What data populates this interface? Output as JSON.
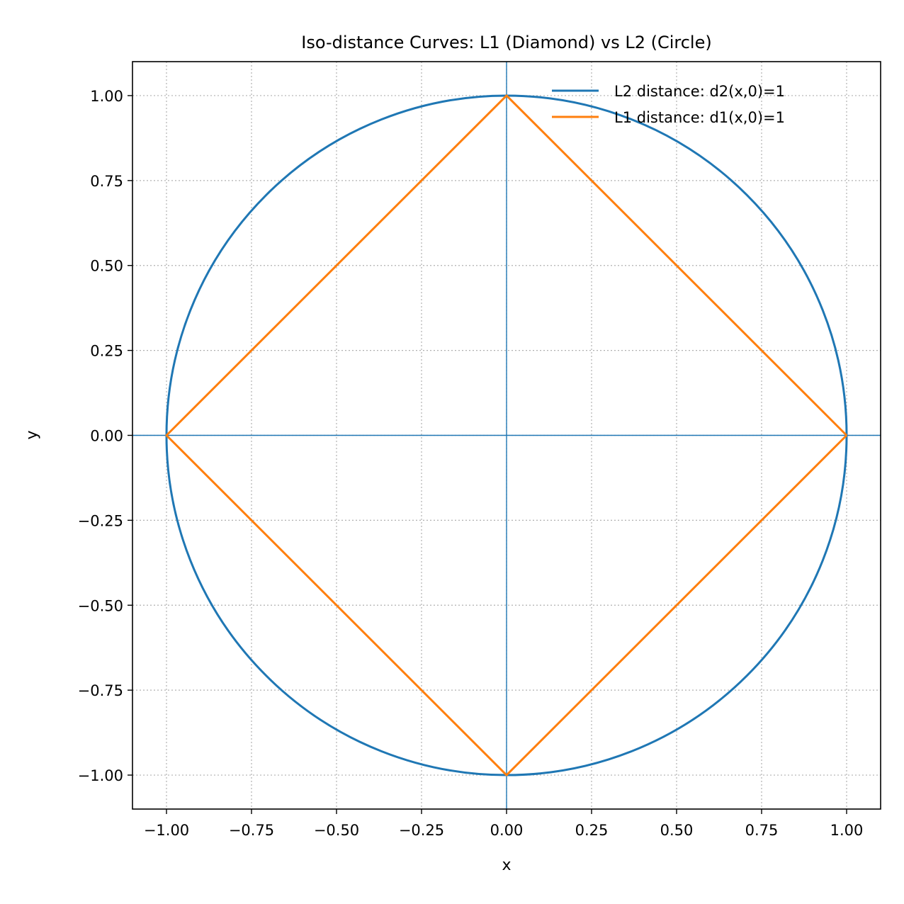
{
  "chart_data": {
    "type": "line",
    "title": "Iso-distance Curves: L1 (Diamond) vs L2 (Circle)",
    "xlabel": "x",
    "ylabel": "y",
    "xlim": [
      -1.1,
      1.1
    ],
    "ylim": [
      -1.1,
      1.1
    ],
    "xticks": [
      -1.0,
      -0.75,
      -0.5,
      -0.25,
      0.0,
      0.25,
      0.5,
      0.75,
      1.0
    ],
    "yticks": [
      -1.0,
      -0.75,
      -0.5,
      -0.25,
      0.0,
      0.25,
      0.5,
      0.75,
      1.0
    ],
    "xtick_labels": [
      "−1.00",
      "−0.75",
      "−0.50",
      "−0.25",
      "0.00",
      "0.25",
      "0.50",
      "0.75",
      "1.00"
    ],
    "ytick_labels": [
      "−1.00",
      "−0.75",
      "−0.50",
      "−0.25",
      "0.00",
      "0.25",
      "0.50",
      "0.75",
      "1.00"
    ],
    "grid": true,
    "legend_position": "top-right",
    "reference_lines": {
      "x": 0,
      "y": 0,
      "color": "#1f77b4"
    },
    "series": [
      {
        "name": "L2 distance: d2(x,0)=1",
        "color": "#1f77b4",
        "shape": "circle",
        "center": [
          0,
          0
        ],
        "radius": 1
      },
      {
        "name": "L1 distance: d1(x,0)=1",
        "color": "#ff7f0e",
        "shape": "diamond",
        "points": [
          [
            1,
            0
          ],
          [
            0,
            1
          ],
          [
            -1,
            0
          ],
          [
            0,
            -1
          ],
          [
            1,
            0
          ]
        ]
      }
    ]
  }
}
